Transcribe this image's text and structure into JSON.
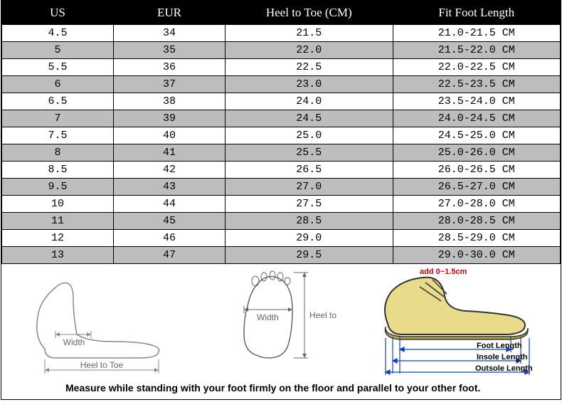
{
  "table": {
    "columns": [
      "US",
      "EUR",
      "Heel to Toe (CM)",
      "Fit Foot Length"
    ],
    "rows": [
      [
        "4.5",
        "34",
        "21.5",
        "21.0-21.5 CM"
      ],
      [
        "5",
        "35",
        "22.0",
        "21.5-22.0 CM"
      ],
      [
        "5.5",
        "36",
        "22.5",
        "22.0-22.5 CM"
      ],
      [
        "6",
        "37",
        "23.0",
        "22.5-23.5 CM"
      ],
      [
        "6.5",
        "38",
        "24.0",
        "23.5-24.0 CM"
      ],
      [
        "7",
        "39",
        "24.5",
        "24.0-24.5 CM"
      ],
      [
        "7.5",
        "40",
        "25.0",
        "24.5-25.0 CM"
      ],
      [
        "8",
        "41",
        "25.5",
        "25.0-26.0 CM"
      ],
      [
        "8.5",
        "42",
        "26.5",
        "26.0-26.5 CM"
      ],
      [
        "9.5",
        "43",
        "27.0",
        "26.5-27.0 CM"
      ],
      [
        "10",
        "44",
        "27.5",
        "27.0-28.0 CM"
      ],
      [
        "11",
        "45",
        "28.5",
        "28.0-28.5 CM"
      ],
      [
        "12",
        "46",
        "29.0",
        "28.5-29.0 CM"
      ],
      [
        "13",
        "47",
        "29.5",
        "29.0-30.0 CM"
      ]
    ],
    "header_bg": "#000000",
    "header_fg": "#ffffff",
    "row_alt_bg": "#bdbdbd",
    "row_bg": "#ffffff",
    "border_color": "#000000",
    "font_family": "Courier New",
    "header_font_family": "Georgia",
    "col_widths_pct": [
      20,
      20,
      30,
      30
    ]
  },
  "diagram1": {
    "label_width": "Width",
    "label_heeltoe": "Heel to Toe",
    "stroke": "#999999"
  },
  "diagram2": {
    "label_width": "Width",
    "label_heeltoe": "Heel to Toe",
    "stroke": "#666666"
  },
  "diagram3": {
    "label_add": "add 0~1.5cm",
    "label_foot": "Foot Length",
    "label_insole": "Insole Length",
    "label_outsole": "Outsole Length",
    "shoe_fill": "#e8dc8a",
    "shoe_stroke": "#333333",
    "add_color": "#cc0000",
    "arrow_color": "#1040c0"
  },
  "instruction": "Measure while standing with your foot firmly on the floor and parallel to your other foot."
}
